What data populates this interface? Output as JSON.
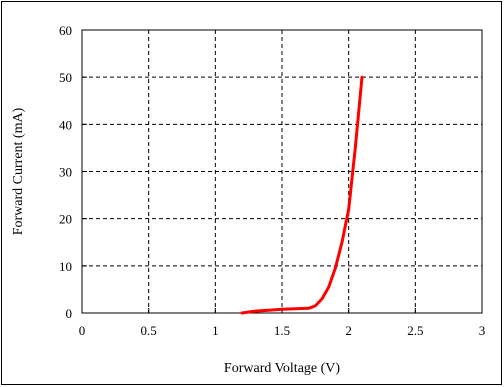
{
  "chart_data": {
    "type": "line",
    "title": "",
    "xlabel": "Forward Voltage (V)",
    "ylabel": "Forward Current (mA)",
    "xlim": [
      0,
      3
    ],
    "ylim": [
      0,
      60
    ],
    "x_ticks": [
      0,
      0.5,
      1,
      1.5,
      2,
      2.5,
      3
    ],
    "x_tick_labels": [
      "0",
      "0.5",
      "1",
      "1.5",
      "2",
      "2.5",
      "3"
    ],
    "y_ticks": [
      0,
      10,
      20,
      30,
      40,
      50,
      60
    ],
    "y_tick_labels": [
      "0",
      "10",
      "20",
      "30",
      "40",
      "50",
      "60"
    ],
    "grid": true,
    "legend": "none",
    "series": [
      {
        "color": "#ff0000",
        "x": [
          1.2,
          1.3,
          1.4,
          1.5,
          1.6,
          1.7,
          1.75,
          1.8,
          1.85,
          1.9,
          1.95,
          2.0,
          2.05,
          2.08,
          2.1
        ],
        "y": [
          0,
          0.4,
          0.6,
          0.8,
          0.9,
          1.0,
          1.5,
          3.0,
          5.5,
          9.5,
          15,
          22,
          35,
          44,
          50
        ]
      }
    ],
    "colors": {
      "background": "#ffffff",
      "frame": "#000000",
      "grid": "#000000",
      "series": "#ff0000"
    }
  }
}
